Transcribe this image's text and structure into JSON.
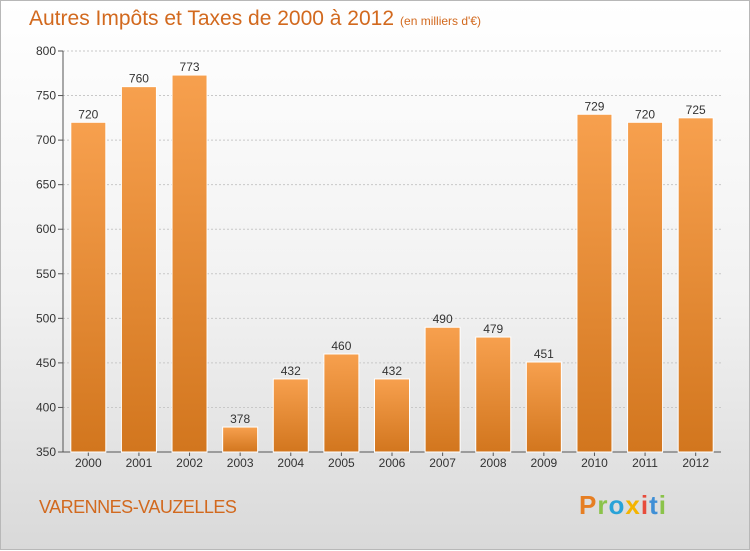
{
  "header": {
    "title": "Autres Impôts et Taxes de 2000 à 2012",
    "unit": "(en milliers d'€)"
  },
  "footer": {
    "place": "VARENNES-VAUZELLES",
    "logo": "Proxiti",
    "logo_colors": [
      "#e67e22",
      "#8bc34a",
      "#29a3d8",
      "#f4b400",
      "#e74c3c",
      "#3f8fd6",
      "#8bc34a"
    ]
  },
  "colors": {
    "bar_top": "#f7a04e",
    "bar_bottom": "#d2761e",
    "text": "#333333",
    "accent": "#d2691e"
  },
  "chart_data": {
    "type": "bar",
    "title": "Autres Impôts et Taxes de 2000 à 2012",
    "categories": [
      "2000",
      "2001",
      "2002",
      "2003",
      "2004",
      "2005",
      "2006",
      "2007",
      "2008",
      "2009",
      "2010",
      "2011",
      "2012"
    ],
    "values": [
      720,
      760,
      773,
      378,
      432,
      460,
      432,
      490,
      479,
      451,
      729,
      720,
      725
    ],
    "ylim": [
      350,
      800
    ],
    "yticks": [
      350,
      400,
      450,
      500,
      550,
      600,
      650,
      700,
      750,
      800
    ],
    "grid": true
  }
}
